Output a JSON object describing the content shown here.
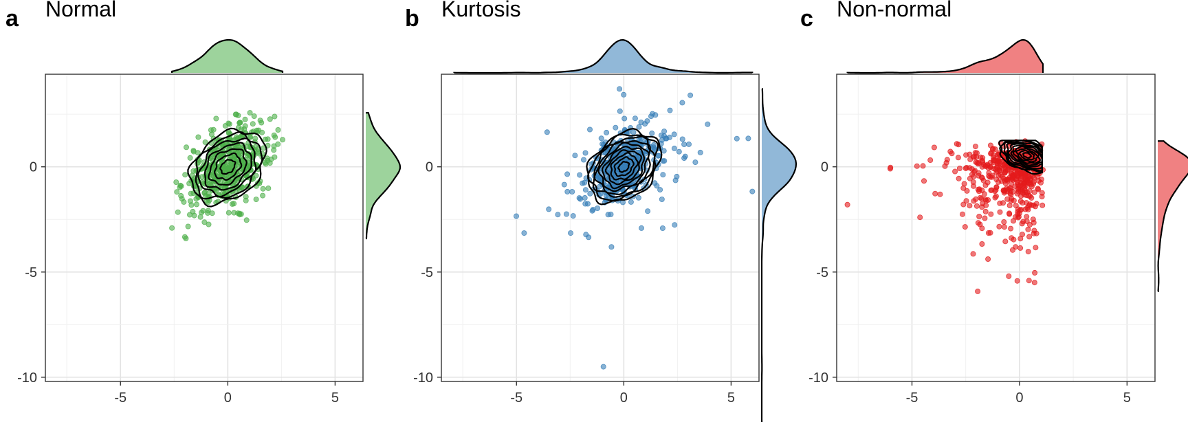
{
  "chart_data": [
    {
      "type": "scatter",
      "panel": "a",
      "title": "Normal",
      "color": "#4daf4a",
      "point_count": 500,
      "spread": {
        "sx": 1.0,
        "sy": 1.0,
        "rho": 0.4
      },
      "xlim": [
        -8.5,
        6.3
      ],
      "ylim": [
        -10.2,
        4.4
      ],
      "x_ticks": [
        "-5",
        "0",
        "5"
      ],
      "x_tick_values": [
        -5,
        0,
        5
      ],
      "y_ticks": [
        "0",
        "-5",
        "-10"
      ],
      "y_tick_values": [
        0,
        -5,
        -10
      ],
      "grid": true,
      "contours": true,
      "marginals": true
    },
    {
      "type": "scatter",
      "panel": "b",
      "title": "Kurtosis",
      "color": "#377eb8",
      "point_count": 500,
      "spread": {
        "sx": 1.0,
        "sy": 1.0,
        "rho": 0.4,
        "df": 4
      },
      "outliers": [
        [
          -0.95,
          -9.5
        ],
        [
          5.8,
          1.35
        ],
        [
          3.1,
          3.4
        ],
        [
          -0.2,
          3.7
        ]
      ],
      "xlim": [
        -8.5,
        6.3
      ],
      "ylim": [
        -10.2,
        4.4
      ],
      "x_ticks": [
        "-5",
        "0",
        "5"
      ],
      "x_tick_values": [
        -5,
        0,
        5
      ],
      "y_ticks": [
        "0",
        "-5",
        "-10"
      ],
      "y_tick_values": [
        0,
        -5,
        -10
      ],
      "grid": true,
      "contours": true,
      "marginals": true
    },
    {
      "type": "scatter",
      "panel": "c",
      "title": "Non-normal",
      "color": "#e41a1c",
      "point_count": 500,
      "spread": {
        "skew": "left",
        "mode": [
          0.8,
          0.8
        ]
      },
      "outliers": [
        [
          -8.0,
          -1.8
        ],
        [
          0.7,
          -5.5
        ],
        [
          -0.5,
          -5.2
        ]
      ],
      "xlim": [
        -8.5,
        6.3
      ],
      "ylim": [
        -10.2,
        4.4
      ],
      "x_ticks": [
        "-5",
        "0",
        "5"
      ],
      "x_tick_values": [
        -5,
        0,
        5
      ],
      "y_ticks": [
        "0",
        "-5",
        "-10"
      ],
      "y_tick_values": [
        0,
        -5,
        -10
      ],
      "grid": true,
      "contours": true,
      "marginals": true
    }
  ]
}
